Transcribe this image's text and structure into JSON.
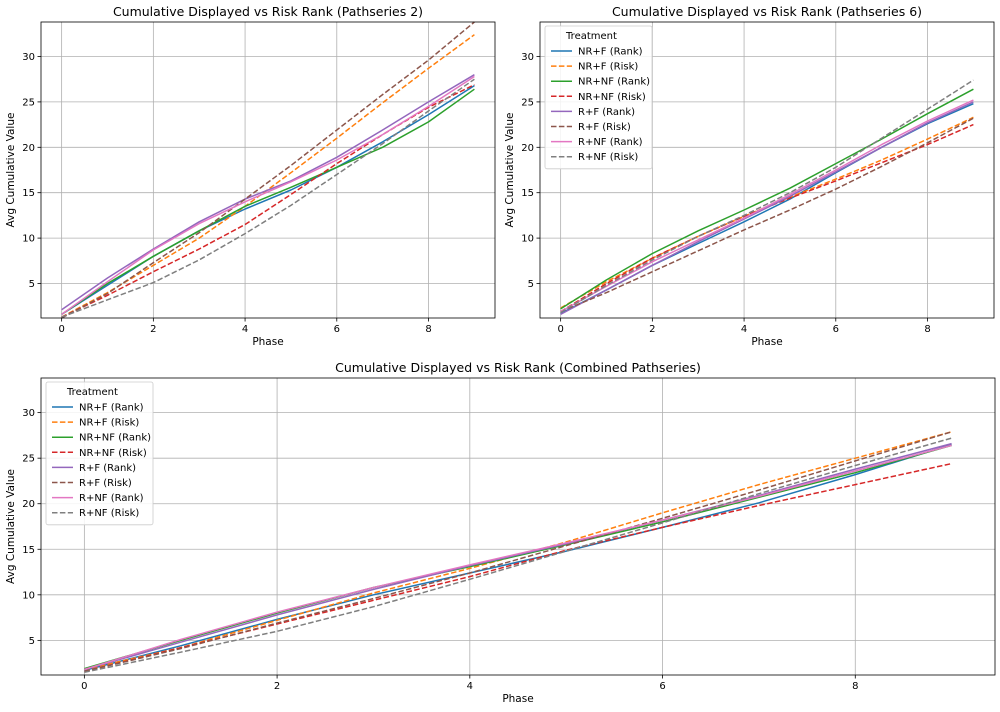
{
  "chart_data": [
    {
      "type": "line",
      "title": "Cumulative Displayed vs Risk Rank (Pathseries 2)",
      "xlabel": "Phase",
      "ylabel": "Avg Cumulative Value",
      "xlim": [
        -0.45,
        9.45
      ],
      "ylim": [
        1.2,
        33.8
      ],
      "xticks": [
        0,
        2,
        4,
        6,
        8
      ],
      "yticks": [
        5,
        10,
        15,
        20,
        25,
        30
      ],
      "grid": true,
      "legend": null,
      "x": [
        0,
        1,
        2,
        3,
        4,
        5,
        6,
        7,
        8,
        9
      ],
      "series": [
        {
          "name": "NR+F (Rank)",
          "color": "#1f77b4",
          "dashed": false,
          "values": [
            1.6,
            4.8,
            8.0,
            10.8,
            13.2,
            15.3,
            17.8,
            20.6,
            23.6,
            26.8
          ]
        },
        {
          "name": "NR+F (Risk)",
          "color": "#ff7f0e",
          "dashed": true,
          "values": [
            1.3,
            4.0,
            7.0,
            10.0,
            13.5,
            17.2,
            21.0,
            24.9,
            28.7,
            32.4
          ]
        },
        {
          "name": "NR+NF (Rank)",
          "color": "#2ca02c",
          "dashed": false,
          "values": [
            1.6,
            5.0,
            8.0,
            10.8,
            13.5,
            15.6,
            17.8,
            20.0,
            22.8,
            26.4
          ]
        },
        {
          "name": "NR+NF (Risk)",
          "color": "#d62728",
          "dashed": true,
          "values": [
            1.3,
            3.7,
            6.3,
            8.8,
            11.5,
            14.8,
            18.2,
            21.4,
            24.4,
            26.9
          ]
        },
        {
          "name": "R+F (Rank)",
          "color": "#9467bd",
          "dashed": false,
          "values": [
            2.1,
            5.6,
            8.8,
            11.8,
            14.3,
            16.3,
            18.9,
            21.9,
            25.0,
            28.0
          ]
        },
        {
          "name": "R+F (Risk)",
          "color": "#8c564b",
          "dashed": true,
          "values": [
            1.2,
            3.9,
            7.3,
            10.6,
            14.3,
            18.0,
            21.9,
            25.8,
            29.6,
            33.8
          ]
        },
        {
          "name": "R+NF (Rank)",
          "color": "#e377c2",
          "dashed": false,
          "values": [
            1.6,
            5.2,
            8.7,
            11.6,
            14.0,
            16.2,
            18.6,
            21.4,
            24.5,
            27.8
          ]
        },
        {
          "name": "R+NF (Risk)",
          "color": "#7f7f7f",
          "dashed": true,
          "values": [
            1.3,
            3.2,
            5.1,
            7.6,
            10.5,
            13.6,
            17.0,
            20.4,
            24.0,
            27.5
          ]
        }
      ]
    },
    {
      "type": "line",
      "title": "Cumulative Displayed vs Risk Rank (Pathseries 6)",
      "xlabel": "Phase",
      "ylabel": "Avg Cumulative Value",
      "xlim": [
        -0.45,
        9.45
      ],
      "ylim": [
        1.2,
        33.8
      ],
      "xticks": [
        0,
        2,
        4,
        6,
        8
      ],
      "yticks": [
        5,
        10,
        15,
        20,
        25,
        30
      ],
      "grid": true,
      "legend": "top-left",
      "legend_title": "Treatment",
      "x": [
        0,
        1,
        2,
        3,
        4,
        5,
        6,
        7,
        8,
        9
      ],
      "series": [
        {
          "name": "NR+F (Rank)",
          "color": "#1f77b4",
          "dashed": false,
          "values": [
            1.7,
            4.3,
            7.0,
            9.4,
            11.8,
            14.3,
            17.2,
            20.0,
            22.6,
            24.8
          ]
        },
        {
          "name": "NR+F (Risk)",
          "color": "#ff7f0e",
          "dashed": true,
          "values": [
            2.3,
            5.2,
            7.8,
            10.2,
            12.4,
            14.5,
            16.5,
            18.6,
            20.9,
            23.3
          ]
        },
        {
          "name": "NR+NF (Rank)",
          "color": "#2ca02c",
          "dashed": false,
          "values": [
            2.2,
            5.4,
            8.3,
            10.8,
            13.1,
            15.5,
            18.2,
            20.9,
            23.7,
            26.4
          ]
        },
        {
          "name": "NR+NF (Risk)",
          "color": "#d62728",
          "dashed": true,
          "values": [
            1.9,
            5.0,
            7.8,
            10.2,
            12.4,
            14.4,
            16.3,
            18.3,
            20.3,
            22.5
          ]
        },
        {
          "name": "R+F (Rank)",
          "color": "#9467bd",
          "dashed": false,
          "values": [
            1.6,
            4.3,
            7.0,
            9.6,
            12.1,
            14.6,
            17.3,
            20.0,
            22.7,
            25.0
          ]
        },
        {
          "name": "R+F (Risk)",
          "color": "#8c564b",
          "dashed": true,
          "values": [
            1.9,
            4.0,
            6.3,
            8.6,
            10.9,
            13.1,
            15.4,
            17.9,
            20.5,
            23.2
          ]
        },
        {
          "name": "R+NF (Rank)",
          "color": "#e377c2",
          "dashed": false,
          "values": [
            1.9,
            4.7,
            7.4,
            9.8,
            12.2,
            14.8,
            17.5,
            20.3,
            22.9,
            25.2
          ]
        },
        {
          "name": "R+NF (Risk)",
          "color": "#7f7f7f",
          "dashed": true,
          "values": [
            1.8,
            4.8,
            7.6,
            10.2,
            12.5,
            15.0,
            17.8,
            21.0,
            24.2,
            27.4
          ]
        }
      ]
    },
    {
      "type": "line",
      "title": "Cumulative Displayed vs Risk Rank (Combined Pathseries)",
      "xlabel": "Phase",
      "ylabel": "Avg Cumulative Value",
      "xlim": [
        -0.45,
        9.45
      ],
      "ylim": [
        1.2,
        33.8
      ],
      "xticks": [
        0,
        2,
        4,
        6,
        8
      ],
      "yticks": [
        5,
        10,
        15,
        20,
        25,
        30
      ],
      "grid": true,
      "legend": "top-left",
      "legend_title": "Treatment",
      "x": [
        0,
        1,
        2,
        3,
        4,
        5,
        6,
        7,
        8,
        9
      ],
      "series": [
        {
          "name": "NR+F (Rank)",
          "color": "#1f77b4",
          "dashed": false,
          "values": [
            1.7,
            4.4,
            7.3,
            10.0,
            12.4,
            14.8,
            17.4,
            20.1,
            23.2,
            26.5
          ]
        },
        {
          "name": "NR+F (Risk)",
          "color": "#ff7f0e",
          "dashed": true,
          "values": [
            1.8,
            4.2,
            7.2,
            10.2,
            12.9,
            15.8,
            19.0,
            22.1,
            25.0,
            27.9
          ]
        },
        {
          "name": "NR+NF (Rank)",
          "color": "#2ca02c",
          "dashed": false,
          "values": [
            1.9,
            5.0,
            8.0,
            10.8,
            13.1,
            15.5,
            18.0,
            20.7,
            23.4,
            26.4
          ]
        },
        {
          "name": "NR+NF (Risk)",
          "color": "#d62728",
          "dashed": true,
          "values": [
            1.6,
            4.2,
            6.8,
            9.4,
            12.0,
            14.9,
            17.4,
            19.8,
            22.1,
            24.4
          ]
        },
        {
          "name": "R+F (Rank)",
          "color": "#9467bd",
          "dashed": false,
          "values": [
            1.8,
            4.8,
            7.8,
            10.6,
            13.2,
            15.6,
            18.2,
            20.9,
            23.8,
            26.6
          ]
        },
        {
          "name": "R+F (Risk)",
          "color": "#8c564b",
          "dashed": true,
          "values": [
            1.6,
            4.1,
            6.9,
            9.6,
            12.4,
            15.4,
            18.4,
            21.5,
            24.7,
            27.9
          ]
        },
        {
          "name": "R+NF (Rank)",
          "color": "#e377c2",
          "dashed": false,
          "values": [
            1.8,
            5.1,
            8.1,
            10.8,
            13.3,
            15.7,
            18.2,
            20.8,
            23.6,
            26.4
          ]
        },
        {
          "name": "R+NF (Risk)",
          "color": "#7f7f7f",
          "dashed": true,
          "values": [
            1.5,
            3.7,
            6.0,
            8.7,
            11.7,
            14.8,
            17.9,
            21.1,
            24.2,
            27.2
          ]
        }
      ]
    }
  ]
}
